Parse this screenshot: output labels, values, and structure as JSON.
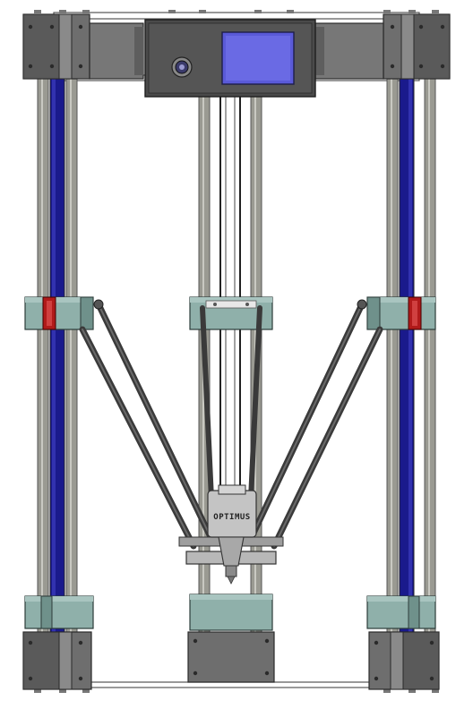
{
  "product": {
    "brand_label": "OPTIMUS"
  },
  "colors": {
    "background": "#ffffff",
    "frame_dark": "#3c3c3c",
    "frame_mid": "#6e6e6e",
    "frame_light": "#a9a9a9",
    "rod": "#9a9a92",
    "belt": "#1a1a8c",
    "carriage": "#8fb0aa",
    "carriage_dark": "#5d7d78",
    "endstop": "#b01a1a",
    "screen": "#5a5ad8",
    "arm": "#3a3a3a",
    "effector": "#b8b8b8"
  },
  "icons": {
    "control_knob": "rotary-knob-icon",
    "lcd": "lcd-screen-icon"
  }
}
